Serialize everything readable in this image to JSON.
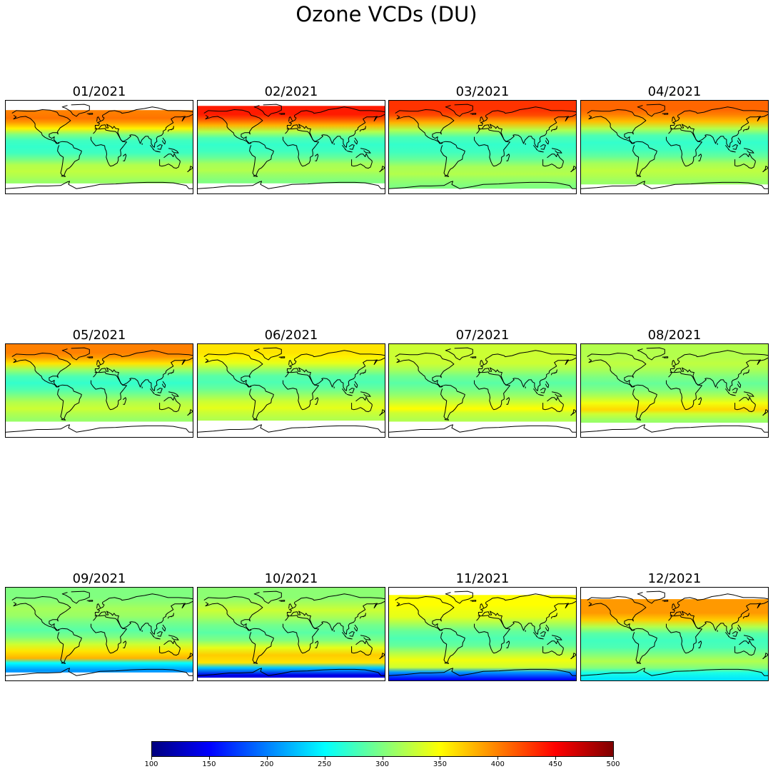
{
  "chart_data": {
    "type": "heatmap",
    "title": "Ozone VCDs (DU)",
    "colormap": "jet",
    "colorbar": {
      "min": 100,
      "max": 500,
      "ticks": [
        100,
        150,
        200,
        250,
        300,
        350,
        400,
        450,
        500
      ]
    },
    "latitudes": [
      85,
      70,
      60,
      45,
      30,
      15,
      0,
      -15,
      -30,
      -45,
      -60,
      -70,
      -85
    ],
    "panels": [
      {
        "label": "01/2021",
        "valid_lat": [
          -68,
          72
        ],
        "profile": [
          400,
          405,
          390,
          355,
          300,
          275,
          270,
          275,
          295,
          320,
          325,
          320,
          310
        ]
      },
      {
        "label": "02/2021",
        "valid_lat": [
          -68,
          80
        ],
        "profile": [
          440,
          440,
          420,
          380,
          320,
          280,
          270,
          275,
          290,
          315,
          320,
          310,
          300
        ]
      },
      {
        "label": "03/2021",
        "valid_lat": [
          -78,
          90
        ],
        "profile": [
          430,
          430,
          420,
          380,
          320,
          280,
          270,
          275,
          290,
          315,
          320,
          310,
          300
        ]
      },
      {
        "label": "04/2021",
        "valid_lat": [
          -70,
          90
        ],
        "profile": [
          410,
          410,
          400,
          375,
          320,
          280,
          270,
          275,
          290,
          315,
          325,
          320,
          310
        ]
      },
      {
        "label": "05/2021",
        "valid_lat": [
          -58,
          90
        ],
        "profile": [
          400,
          400,
          390,
          360,
          310,
          280,
          270,
          280,
          300,
          320,
          330,
          320,
          310
        ]
      },
      {
        "label": "06/2021",
        "valid_lat": [
          -56,
          90
        ],
        "profile": [
          360,
          360,
          355,
          340,
          310,
          285,
          280,
          290,
          310,
          330,
          340,
          330,
          320
        ]
      },
      {
        "label": "07/2021",
        "valid_lat": [
          -58,
          90
        ],
        "profile": [
          330,
          330,
          330,
          330,
          315,
          295,
          285,
          295,
          310,
          330,
          350,
          330,
          320
        ]
      },
      {
        "label": "08/2021",
        "valid_lat": [
          -60,
          90
        ],
        "profile": [
          320,
          320,
          320,
          325,
          315,
          300,
          290,
          300,
          320,
          345,
          365,
          330,
          310
        ]
      },
      {
        "label": "09/2021",
        "valid_lat": [
          -72,
          90
        ],
        "profile": [
          300,
          300,
          305,
          315,
          310,
          295,
          285,
          300,
          330,
          360,
          380,
          250,
          210
        ]
      },
      {
        "label": "10/2021",
        "valid_lat": [
          -82,
          90
        ],
        "profile": [
          305,
          305,
          315,
          330,
          315,
          295,
          285,
          300,
          340,
          370,
          360,
          230,
          140
        ]
      },
      {
        "label": "11/2021",
        "valid_lat": [
          -90,
          76
        ],
        "profile": [
          350,
          350,
          345,
          340,
          315,
          290,
          280,
          290,
          320,
          345,
          330,
          210,
          150
        ]
      },
      {
        "label": "12/2021",
        "valid_lat": [
          -90,
          68
        ],
        "profile": [
          390,
          390,
          390,
          370,
          320,
          285,
          275,
          280,
          300,
          320,
          300,
          260,
          240
        ]
      }
    ]
  }
}
